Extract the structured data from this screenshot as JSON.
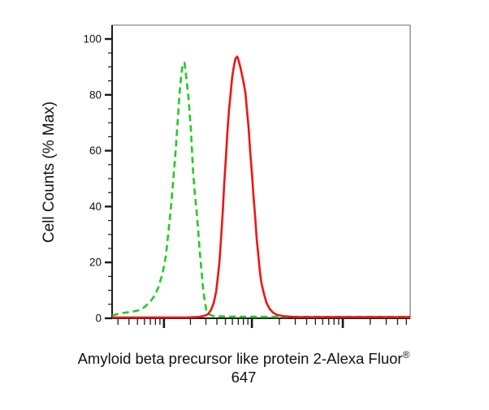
{
  "figure": {
    "y_axis": {
      "label": "Cell Counts (% Max)",
      "major_ticks": [
        0,
        20,
        40,
        60,
        80,
        100
      ],
      "minor_step": 5,
      "range": [
        0,
        105
      ]
    },
    "x_axis": {
      "label_line1": "Amyloid beta precursor like protein 2-Alexa Fluor",
      "label_sup": "®",
      "label_line2": "647",
      "scale": "log",
      "numeric_labels_visible": false,
      "decade_fractions": [
        -0.121,
        0.174,
        0.469,
        0.774,
        1.079
      ]
    },
    "colors": {
      "green_curve": "#22cc22",
      "red_curve": "#ee1515",
      "frame_gray": "#9a9a9a",
      "axis_black": "#1a1a1a",
      "text": "#111111"
    }
  },
  "chart_data": {
    "type": "line",
    "subtype": "flow-cytometry-histogram",
    "title": "",
    "xlabel": "Amyloid beta precursor like protein 2-Alexa Fluor® 647",
    "ylabel": "Cell Counts (% Max)",
    "ylim": [
      0,
      105
    ],
    "x_scale": "log-unlabeled",
    "grid": false,
    "legend": "none",
    "series": [
      {
        "name": "green-dashed-control",
        "color": "#22cc22",
        "style": "dashed",
        "peak": {
          "x_fraction": 0.24,
          "y_percent": 91.5
        },
        "points": [
          [
            0.0,
            1.0
          ],
          [
            0.022,
            1.6
          ],
          [
            0.044,
            2.0
          ],
          [
            0.065,
            2.3
          ],
          [
            0.087,
            2.8
          ],
          [
            0.106,
            3.8
          ],
          [
            0.125,
            5.5
          ],
          [
            0.142,
            8
          ],
          [
            0.155,
            11
          ],
          [
            0.169,
            16
          ],
          [
            0.18,
            22
          ],
          [
            0.188,
            30
          ],
          [
            0.196,
            38
          ],
          [
            0.204,
            48
          ],
          [
            0.213,
            60
          ],
          [
            0.221,
            72
          ],
          [
            0.226,
            80
          ],
          [
            0.232,
            87
          ],
          [
            0.237,
            91
          ],
          [
            0.243,
            91.5
          ],
          [
            0.248,
            87
          ],
          [
            0.256,
            79
          ],
          [
            0.264,
            68
          ],
          [
            0.272,
            52
          ],
          [
            0.278,
            44
          ],
          [
            0.283,
            39
          ],
          [
            0.289,
            31
          ],
          [
            0.294,
            24
          ],
          [
            0.3,
            17
          ],
          [
            0.305,
            11
          ],
          [
            0.311,
            6
          ],
          [
            0.316,
            3
          ],
          [
            0.324,
            1.5
          ],
          [
            0.338,
            0.8
          ],
          [
            0.387,
            0.6
          ],
          [
            0.55,
            0.5
          ],
          [
            0.768,
            0.5
          ],
          [
            1.0,
            0.5
          ]
        ]
      },
      {
        "name": "red-solid-sample",
        "color": "#ee1515",
        "style": "solid",
        "peak": {
          "x_fraction": 0.42,
          "y_percent": 93.7
        },
        "points": [
          [
            0.0,
            0.25
          ],
          [
            0.251,
            0.3
          ],
          [
            0.292,
            0.5
          ],
          [
            0.311,
            0.9
          ],
          [
            0.322,
            1.5
          ],
          [
            0.332,
            3
          ],
          [
            0.341,
            5.5
          ],
          [
            0.349,
            9.5
          ],
          [
            0.354,
            14
          ],
          [
            0.36,
            20
          ],
          [
            0.365,
            28
          ],
          [
            0.371,
            38
          ],
          [
            0.376,
            48
          ],
          [
            0.382,
            58
          ],
          [
            0.387,
            67
          ],
          [
            0.392,
            74.5
          ],
          [
            0.398,
            81
          ],
          [
            0.403,
            86.5
          ],
          [
            0.409,
            90.5
          ],
          [
            0.414,
            93
          ],
          [
            0.42,
            93.7
          ],
          [
            0.425,
            92
          ],
          [
            0.431,
            89.5
          ],
          [
            0.436,
            87
          ],
          [
            0.441,
            84.5
          ],
          [
            0.447,
            81
          ],
          [
            0.452,
            75
          ],
          [
            0.458,
            68
          ],
          [
            0.463,
            60
          ],
          [
            0.469,
            52
          ],
          [
            0.474,
            44
          ],
          [
            0.48,
            36
          ],
          [
            0.485,
            28.5
          ],
          [
            0.491,
            22
          ],
          [
            0.496,
            16.5
          ],
          [
            0.501,
            12.5
          ],
          [
            0.51,
            8.5
          ],
          [
            0.518,
            5.5
          ],
          [
            0.529,
            3.3
          ],
          [
            0.54,
            2
          ],
          [
            0.553,
            1.2
          ],
          [
            0.578,
            0.7
          ],
          [
            0.619,
            0.45
          ],
          [
            1.0,
            0.4
          ]
        ]
      }
    ]
  }
}
